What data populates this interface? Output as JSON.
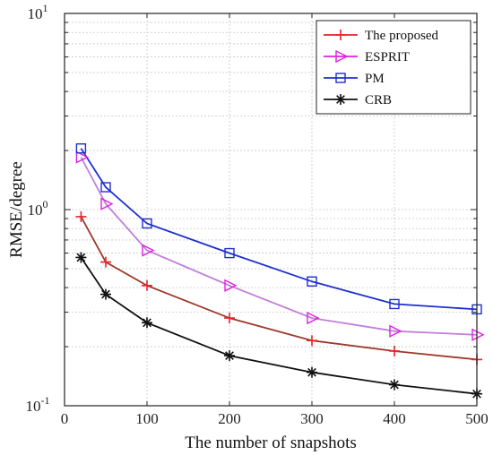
{
  "chart_data": {
    "type": "line",
    "title": "",
    "xlabel": "The number of snapshots",
    "ylabel": "RMSE/degree",
    "xlim": [
      0,
      500
    ],
    "ylim": [
      0.1,
      10
    ],
    "yscale": "log",
    "grid": true,
    "legend_position": "top-right",
    "x_ticks": [
      0,
      100,
      200,
      300,
      400,
      500
    ],
    "y_ticks": [
      {
        "value": 0.1,
        "base": "10",
        "exp": "-1"
      },
      {
        "value": 1,
        "base": "10",
        "exp": "0"
      },
      {
        "value": 10,
        "base": "10",
        "exp": "1"
      }
    ],
    "x": [
      20,
      50,
      100,
      200,
      300,
      400,
      500
    ],
    "series": [
      {
        "name": "The proposed",
        "color": "#e8222a",
        "line_color": "#9b3a2a",
        "marker": "plus",
        "values": [
          0.92,
          0.54,
          0.41,
          0.28,
          0.215,
          0.19,
          0.172
        ]
      },
      {
        "name": "ESPRIT",
        "color": "#e020e0",
        "line_color": "#c080d8",
        "marker": "triangle-right",
        "values": [
          1.85,
          1.07,
          0.62,
          0.41,
          0.28,
          0.24,
          0.23
        ]
      },
      {
        "name": "PM",
        "color": "#1f2fd0",
        "line_color": "#1f2fd0",
        "marker": "square",
        "values": [
          2.05,
          1.3,
          0.85,
          0.6,
          0.43,
          0.33,
          0.31
        ]
      },
      {
        "name": "CRB",
        "color": "#111111",
        "line_color": "#111111",
        "marker": "asterisk",
        "values": [
          0.57,
          0.37,
          0.265,
          0.18,
          0.148,
          0.128,
          0.115
        ]
      }
    ]
  }
}
